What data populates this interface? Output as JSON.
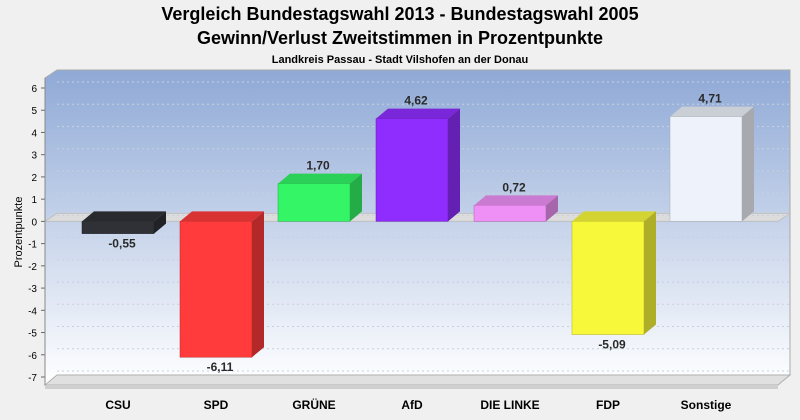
{
  "chart_data": {
    "type": "bar",
    "title": "Vergleich Bundestagswahl 2013 - Bundestagswahl 2005",
    "title_line2": "Gewinn/Verlust Zweitstimmen in Prozentpunkte",
    "subtitle": "Landkreis Passau - Stadt Vilshofen an der Donau",
    "xlabel": "",
    "ylabel": "Prozentpunkte",
    "ylim": [
      -7,
      6
    ],
    "yticks": [
      6,
      5,
      4,
      3,
      2,
      1,
      0,
      -1,
      -2,
      -3,
      -4,
      -5,
      -6,
      -7
    ],
    "grid": true,
    "categories": [
      "CSU",
      "SPD",
      "GRÜNE",
      "AfD",
      "DIE LINKE",
      "FDP",
      "Sonstige"
    ],
    "values": [
      -0.55,
      -6.11,
      1.7,
      4.62,
      0.72,
      -5.09,
      4.71
    ],
    "value_labels": [
      "-0,55",
      "-6,11",
      "1,70",
      "4,62",
      "0,72",
      "-5,09",
      "4,71"
    ],
    "colors": [
      "#2f3136",
      "#ff3b3b",
      "#33f566",
      "#8f2dff",
      "#ee90f5",
      "#f8f83a",
      "#eef2fa"
    ]
  }
}
